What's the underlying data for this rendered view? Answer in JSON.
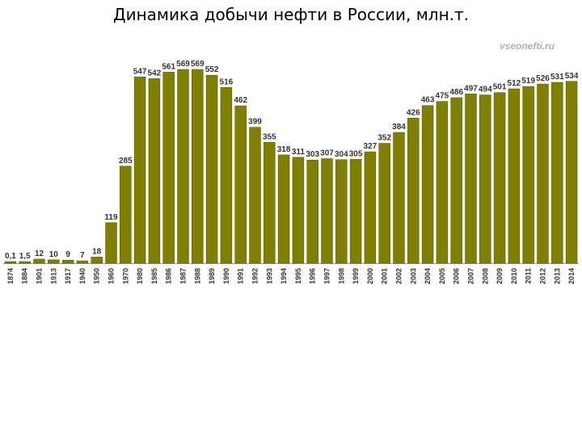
{
  "chart_data": {
    "type": "bar",
    "title": "Динамика добычи нефти в России, млн.т.",
    "watermark": "vseonefti.ru",
    "bar_color": "#808000",
    "bar_edge_color": "#5c5c00",
    "categories": [
      "1874",
      "1884",
      "1901",
      "1913",
      "1917",
      "1940",
      "1950",
      "1960",
      "1970",
      "1980",
      "1985",
      "1986",
      "1987",
      "1988",
      "1989",
      "1990",
      "1991",
      "1992",
      "1993",
      "1994",
      "1995",
      "1996",
      "1997",
      "1998",
      "1999",
      "2000",
      "2001",
      "2002",
      "2003",
      "2004",
      "2005",
      "2006",
      "2007",
      "2008",
      "2009",
      "2010",
      "2011",
      "2012",
      "2013",
      "2014"
    ],
    "values": [
      0.1,
      1.5,
      12,
      10,
      9,
      7,
      18,
      119,
      285,
      547,
      542,
      561,
      569,
      569,
      552,
      516,
      462,
      399,
      355,
      318,
      311,
      303,
      307,
      304,
      305,
      327,
      352,
      384,
      426,
      463,
      475,
      486,
      497,
      494,
      501,
      512,
      519,
      526,
      531,
      534
    ],
    "labels": [
      "0,1",
      "1,5",
      "12",
      "10",
      "9",
      "7",
      "18",
      "119",
      "285",
      "547",
      "542",
      "561",
      "569",
      "569",
      "552",
      "516",
      "462",
      "399",
      "355",
      "318",
      "311",
      "303",
      "307",
      "304",
      "305",
      "327",
      "352",
      "384",
      "426",
      "463",
      "475",
      "486",
      "497",
      "494",
      "501",
      "512",
      "519",
      "526",
      "531",
      "534"
    ],
    "ylim": [
      0,
      600
    ],
    "grid": false,
    "xlabel": "",
    "ylabel": ""
  }
}
